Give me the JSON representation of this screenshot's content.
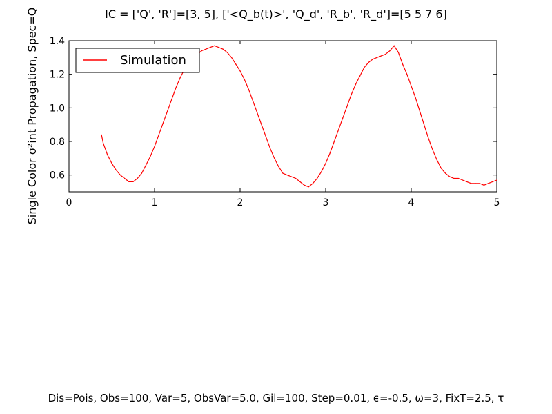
{
  "chart_data": {
    "type": "line",
    "title": "IC = ['Q', 'R']=[3, 5], ['<Q_b(t)>', 'Q_d', 'R_b', 'R_d']=[5 5 7 6]",
    "ylabel": "Single Color σ²int  Propagation, Spec=Q",
    "footer": "Dis=Pois, Obs=100, Var=5, ObsVar=5.0, Gil=100, Step=0.01, ϵ=-0.5, ω=3, FixT=2.5, τ",
    "xlim": [
      0,
      5
    ],
    "ylim": [
      0.5,
      1.4
    ],
    "x_ticks": [
      "0",
      "1",
      "2",
      "3",
      "4",
      "5"
    ],
    "y_ticks": [
      "0.6",
      "0.8",
      "1.0",
      "1.2",
      "1.4"
    ],
    "grid": false,
    "legend": {
      "position": "top-left",
      "entries": [
        "Simulation"
      ]
    },
    "series": [
      {
        "name": "Simulation",
        "color": "#ff0000",
        "x": [
          0.38,
          0.4,
          0.45,
          0.5,
          0.55,
          0.6,
          0.65,
          0.7,
          0.75,
          0.8,
          0.85,
          0.9,
          0.95,
          1.0,
          1.05,
          1.1,
          1.15,
          1.2,
          1.25,
          1.3,
          1.35,
          1.4,
          1.45,
          1.5,
          1.55,
          1.6,
          1.65,
          1.7,
          1.75,
          1.8,
          1.85,
          1.9,
          1.95,
          2.0,
          2.05,
          2.1,
          2.15,
          2.2,
          2.25,
          2.3,
          2.35,
          2.4,
          2.45,
          2.5,
          2.55,
          2.6,
          2.65,
          2.7,
          2.75,
          2.8,
          2.85,
          2.9,
          2.95,
          3.0,
          3.05,
          3.1,
          3.15,
          3.2,
          3.25,
          3.3,
          3.35,
          3.4,
          3.45,
          3.5,
          3.55,
          3.6,
          3.65,
          3.7,
          3.75,
          3.8,
          3.85,
          3.9,
          3.95,
          4.0,
          4.05,
          4.1,
          4.15,
          4.2,
          4.25,
          4.3,
          4.35,
          4.4,
          4.45,
          4.5,
          4.55,
          4.6,
          4.65,
          4.7,
          4.75,
          4.8,
          4.85,
          4.9,
          4.95,
          5.0
        ],
        "y": [
          0.84,
          0.79,
          0.72,
          0.67,
          0.63,
          0.6,
          0.58,
          0.56,
          0.56,
          0.58,
          0.61,
          0.66,
          0.71,
          0.77,
          0.84,
          0.91,
          0.98,
          1.05,
          1.12,
          1.18,
          1.23,
          1.27,
          1.3,
          1.32,
          1.34,
          1.35,
          1.36,
          1.37,
          1.36,
          1.35,
          1.33,
          1.3,
          1.26,
          1.22,
          1.17,
          1.11,
          1.04,
          0.97,
          0.9,
          0.83,
          0.76,
          0.7,
          0.65,
          0.61,
          0.6,
          0.59,
          0.58,
          0.56,
          0.54,
          0.53,
          0.55,
          0.58,
          0.62,
          0.67,
          0.73,
          0.8,
          0.87,
          0.94,
          1.01,
          1.08,
          1.14,
          1.19,
          1.24,
          1.27,
          1.29,
          1.3,
          1.31,
          1.32,
          1.34,
          1.37,
          1.33,
          1.26,
          1.2,
          1.13,
          1.06,
          0.98,
          0.9,
          0.82,
          0.75,
          0.69,
          0.64,
          0.61,
          0.59,
          0.58,
          0.58,
          0.57,
          0.56,
          0.55,
          0.55,
          0.55,
          0.54,
          0.55,
          0.56,
          0.57
        ]
      }
    ]
  }
}
